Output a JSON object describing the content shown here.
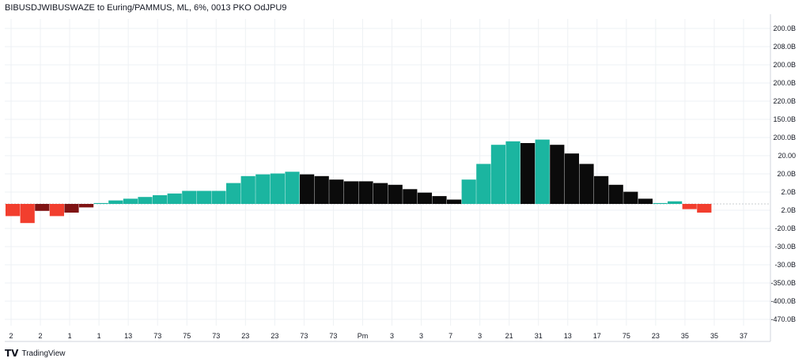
{
  "header": {
    "title": "BIBUSDJWIBUSWAZE to Euring/PAMMUS, ML, 6%, 0013 PKO OdJPU9"
  },
  "footer": {
    "logo": "TV",
    "brand": "TradingView"
  },
  "colors": {
    "teal": "#1bb5a0",
    "black": "#0b0b0b",
    "red": "#f23e2e",
    "darkred": "#801414",
    "grid": "#eef1f4",
    "zero_line": "#c8ccd2"
  },
  "chart_data": {
    "type": "bar",
    "title": "BIBUSDJWIBUSWAZE to Euring/PAMMUS, ML, 6%, 0013 PKO OdJPU9",
    "ylim": [
      -7,
      10
    ],
    "values": [
      -0.7,
      -1.1,
      -0.4,
      -0.7,
      -0.5,
      -0.2,
      0.05,
      0.2,
      0.3,
      0.4,
      0.5,
      0.6,
      0.75,
      0.75,
      0.75,
      1.2,
      1.6,
      1.7,
      1.75,
      1.85,
      1.7,
      1.6,
      1.4,
      1.3,
      1.3,
      1.2,
      1.1,
      0.85,
      0.65,
      0.45,
      0.25,
      1.4,
      2.3,
      3.4,
      3.6,
      3.5,
      3.7,
      3.4,
      2.9,
      2.3,
      1.6,
      1.1,
      0.7,
      0.3,
      0.05,
      0.15,
      -0.3,
      -0.5
    ],
    "colors": [
      "red",
      "red",
      "darkred",
      "red",
      "darkred",
      "darkred",
      "teal",
      "teal",
      "teal",
      "teal",
      "teal",
      "teal",
      "teal",
      "teal",
      "teal",
      "teal",
      "teal",
      "teal",
      "teal",
      "teal",
      "black",
      "black",
      "black",
      "black",
      "black",
      "black",
      "black",
      "black",
      "black",
      "black",
      "black",
      "teal",
      "teal",
      "teal",
      "teal",
      "black",
      "teal",
      "black",
      "black",
      "black",
      "black",
      "black",
      "black",
      "black",
      "teal",
      "teal",
      "red",
      "red"
    ],
    "y_tick_labels": [
      "200.0B",
      "208.0B",
      "200.0B",
      "200.0B",
      "220.0B",
      "150.0B",
      "200.0B",
      "20.00",
      "20.0B",
      "2.0B",
      "2.0B",
      "-20.0B",
      "-30.0B",
      "-30.0B",
      "-350.0B",
      "-400.0B",
      "-470.0B"
    ],
    "x_tick_labels": [
      "2",
      "2",
      "1",
      "1",
      "13",
      "73",
      "75",
      "73",
      "23",
      "23",
      "73",
      "73",
      "Pm",
      "3",
      "3",
      "7",
      "3",
      "21",
      "31",
      "13",
      "17",
      "75",
      "23",
      "35",
      "35",
      "37"
    ],
    "grid": true,
    "legend": "none"
  }
}
